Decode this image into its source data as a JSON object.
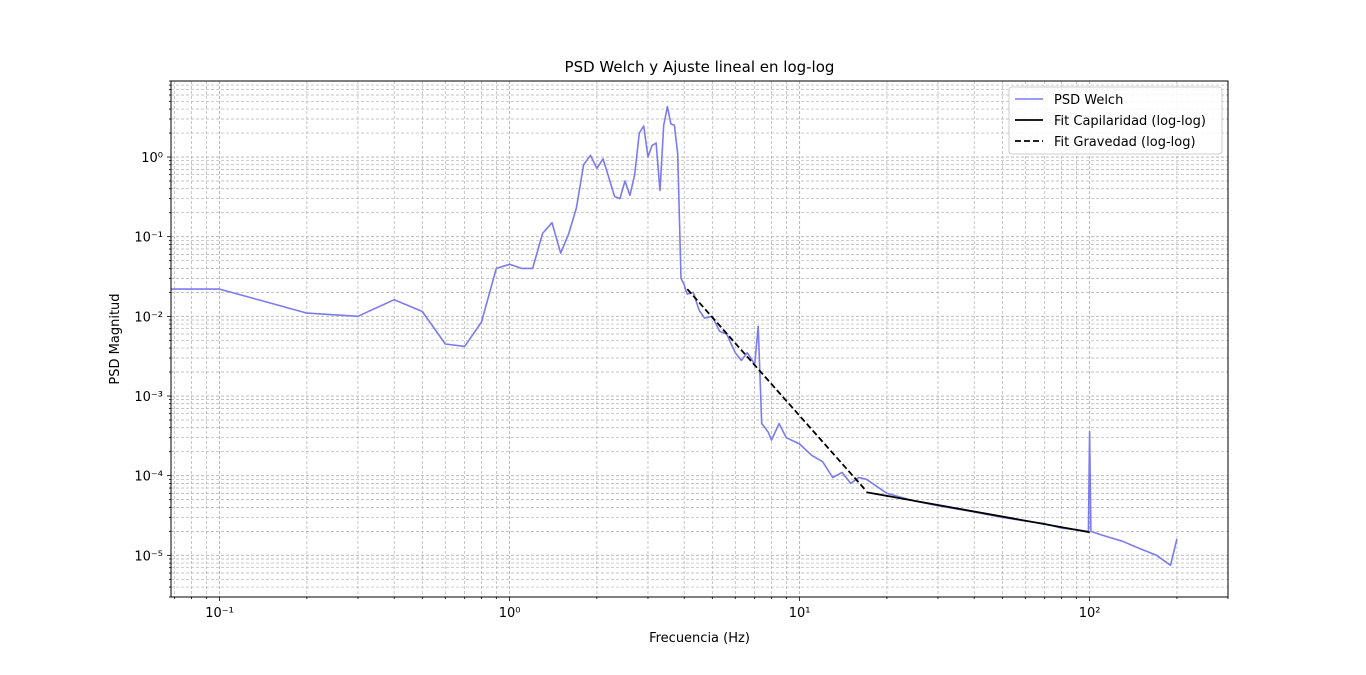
{
  "chart_data": {
    "type": "line",
    "title": "PSD Welch y Ajuste lineal en log-log",
    "xlabel": "Frecuencia (Hz)",
    "ylabel": "PSD Magnitud",
    "xscale": "log",
    "yscale": "log",
    "xlim": [
      0.068,
      300
    ],
    "ylim": [
      3e-06,
      9.0
    ],
    "grid": true,
    "legend_position": "top-right",
    "x_ticks": [
      {
        "value": 0.1,
        "label": "10⁻¹"
      },
      {
        "value": 1,
        "label": "10⁰"
      },
      {
        "value": 10,
        "label": "10¹"
      },
      {
        "value": 100,
        "label": "10²"
      }
    ],
    "y_ticks": [
      {
        "value": 1e-05,
        "label": "10⁻⁵"
      },
      {
        "value": 0.0001,
        "label": "10⁻⁴"
      },
      {
        "value": 0.001,
        "label": "10⁻³"
      },
      {
        "value": 0.01,
        "label": "10⁻²"
      },
      {
        "value": 0.1,
        "label": "10⁻¹"
      },
      {
        "value": 1,
        "label": "10⁰"
      }
    ],
    "series": [
      {
        "name": "PSD Welch",
        "color": "#7b7bf0",
        "style": "solid",
        "x": [
          0.05,
          0.1,
          0.2,
          0.3,
          0.4,
          0.5,
          0.6,
          0.7,
          0.8,
          0.9,
          1.0,
          1.1,
          1.2,
          1.3,
          1.4,
          1.5,
          1.6,
          1.7,
          1.8,
          1.9,
          2.0,
          2.1,
          2.2,
          2.3,
          2.4,
          2.5,
          2.6,
          2.7,
          2.8,
          2.9,
          3.0,
          3.1,
          3.2,
          3.3,
          3.4,
          3.5,
          3.6,
          3.7,
          3.8,
          3.9,
          4.0,
          4.05,
          4.1,
          4.3,
          4.5,
          4.7,
          5.0,
          5.3,
          5.6,
          6.0,
          6.3,
          6.6,
          7.0,
          7.2,
          7.4,
          7.6,
          7.8,
          8.0,
          8.5,
          9.0,
          10.0,
          11.0,
          12.0,
          13.0,
          14.0,
          15.0,
          16.0,
          17.0,
          20.0,
          25.0,
          30.0,
          40.0,
          50.0,
          60.0,
          70.0,
          80.0,
          90.0,
          99.0,
          100.0,
          101.0,
          110.0,
          130.0,
          150.0,
          170.0,
          190.0,
          200.0
        ],
        "y": [
          0.022,
          0.022,
          0.011,
          0.01,
          0.0162,
          0.0115,
          0.0045,
          0.0042,
          0.0085,
          0.04,
          0.045,
          0.04,
          0.04,
          0.11,
          0.15,
          0.062,
          0.11,
          0.23,
          0.8,
          1.05,
          0.72,
          0.95,
          0.55,
          0.32,
          0.3,
          0.5,
          0.33,
          0.6,
          2.0,
          2.45,
          1.0,
          1.4,
          1.5,
          0.38,
          2.5,
          4.3,
          2.6,
          2.5,
          1.1,
          0.03,
          0.025,
          0.021,
          0.019,
          0.02,
          0.012,
          0.0095,
          0.01,
          0.0065,
          0.006,
          0.0035,
          0.0028,
          0.0035,
          0.0025,
          0.0075,
          0.00045,
          0.0004,
          0.00035,
          0.00028,
          0.00045,
          0.0003,
          0.00025,
          0.00018,
          0.00015,
          9.5e-05,
          0.00011,
          8e-05,
          9.5e-05,
          9e-05,
          6e-05,
          4.8e-05,
          4.2e-05,
          3.5e-05,
          3e-05,
          2.7e-05,
          2.5e-05,
          2.2e-05,
          2.1e-05,
          2e-05,
          0.00036,
          2e-05,
          1.8e-05,
          1.5e-05,
          1.2e-05,
          1e-05,
          7.5e-06,
          1.6e-05
        ]
      },
      {
        "name": "Fit Capilaridad (log-log)",
        "color": "#000000",
        "style": "solid",
        "x": [
          17.0,
          100.0
        ],
        "y": [
          6.2e-05,
          1.95e-05
        ]
      },
      {
        "name": "Fit Gravedad (log-log)",
        "color": "#000000",
        "style": "dashed",
        "x": [
          4.1,
          17.0
        ],
        "y": [
          0.022,
          6.4e-05
        ]
      }
    ]
  }
}
